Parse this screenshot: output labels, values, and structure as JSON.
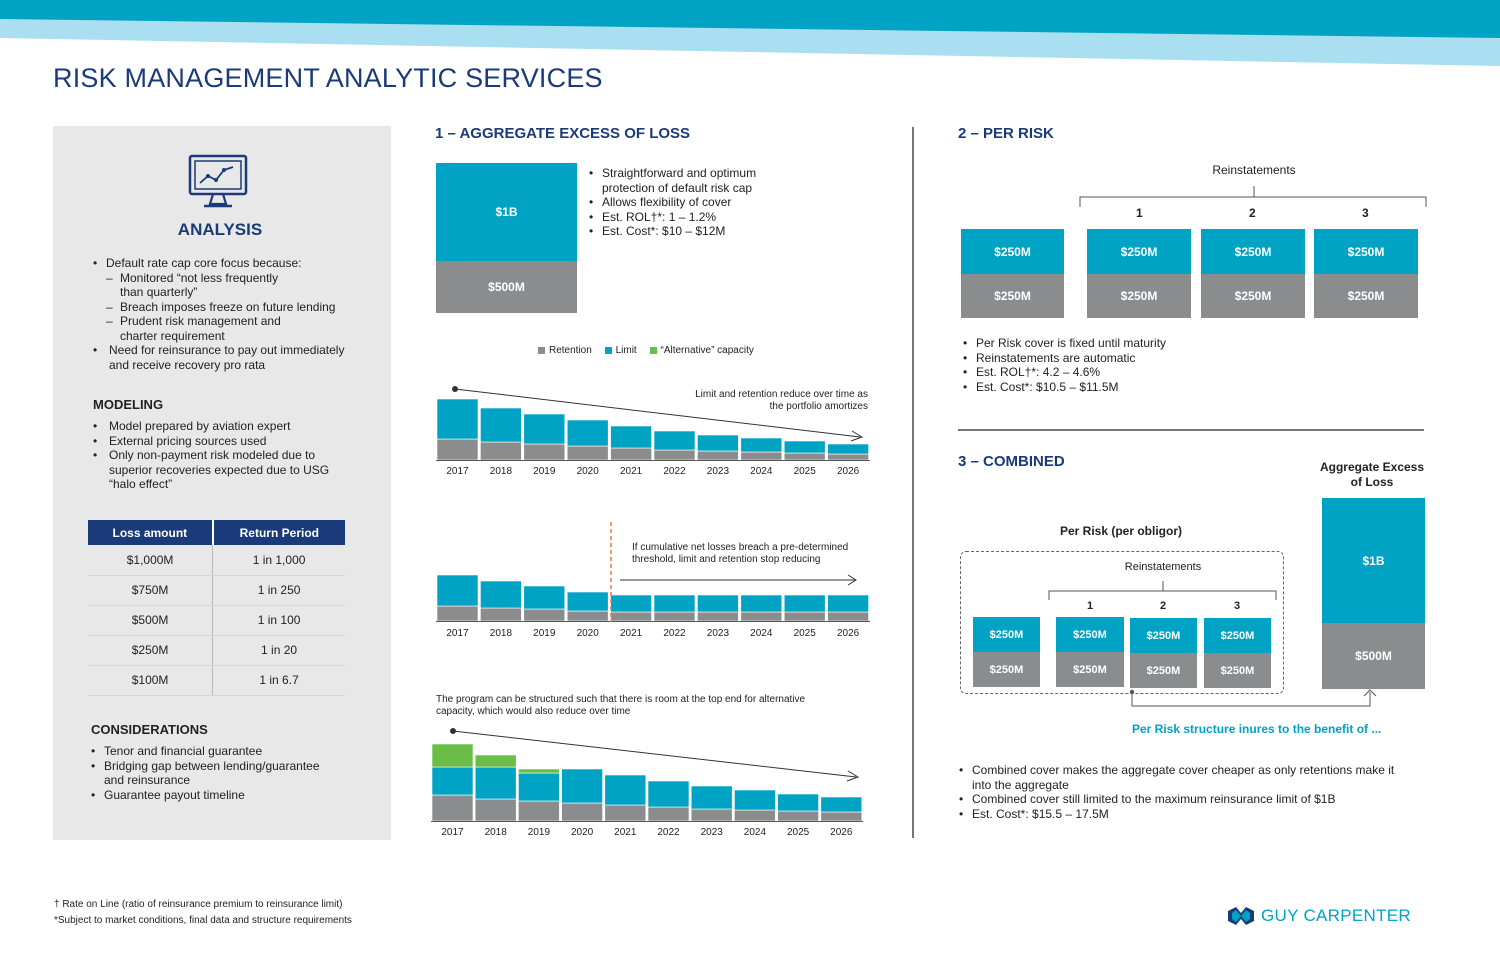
{
  "title": "RISK MANAGEMENT ANALYTIC SERVICES",
  "analysis": {
    "heading": "ANALYSIS",
    "b1": "Default rate cap core focus because:",
    "d1": "Monitored “not less frequently than quarterly”",
    "d2": "Breach imposes freeze on future lending",
    "d3": "Prudent risk management and charter requirement",
    "b2": "Need for reinsurance to pay out immediately and receive recovery pro rata"
  },
  "modeling": {
    "heading": "MODELING",
    "b1": "Model prepared by aviation expert",
    "b2": "External pricing sources used",
    "b3": "Only non-payment risk modeled due to superior recoveries expected due to USG “halo effect”"
  },
  "table": {
    "h1": "Loss amount",
    "h2": "Return Period",
    "rows": [
      [
        "$1,000M",
        "1 in 1,000"
      ],
      [
        "$750M",
        "1 in 250"
      ],
      [
        "$500M",
        "1 in 100"
      ],
      [
        "$250M",
        "1 in 20"
      ],
      [
        "$100M",
        "1 in 6.7"
      ]
    ]
  },
  "considerations": {
    "heading": "CONSIDERATIONS",
    "b1": "Tenor and financial guarantee",
    "b2": "Bridging gap between lending/guarantee and reinsurance",
    "b3": "Guarantee payout timeline"
  },
  "agg": {
    "heading": "1 – AGGREGATE EXCESS OF LOSS",
    "limit": "$1B",
    "retention": "$500M",
    "b1": "Straightforward and optimum protection of default risk cap",
    "b2": "Allows flexibility of cover",
    "b3": "Est. ROL†*: 1 – 1.2%",
    "b4": "Est. Cost*: $10 – $12M",
    "legend": [
      "Retention",
      "Limit",
      "“Alternative” capacity"
    ],
    "note1": "Limit and retention reduce over time as the portfolio amortizes",
    "note2": "If cumulative net losses breach  a pre-determined threshold, limit and retention stop reducing",
    "note3": "The program can be structured such that there is room at the top end for alternative capacity, which would also reduce over time"
  },
  "chart_data": [
    {
      "type": "bar",
      "categories": [
        "2017",
        "2018",
        "2019",
        "2020",
        "2021",
        "2022",
        "2023",
        "2024",
        "2025",
        "2026"
      ],
      "series": [
        {
          "name": "Retention",
          "values": [
            21,
            18,
            16,
            14,
            12,
            10,
            9,
            8,
            7,
            6
          ]
        },
        {
          "name": "Limit",
          "values": [
            40,
            34,
            30,
            26,
            22,
            19,
            16,
            14,
            12,
            10
          ]
        }
      ]
    },
    {
      "type": "bar",
      "categories": [
        "2017",
        "2018",
        "2019",
        "2020",
        "2021",
        "2022",
        "2023",
        "2024",
        "2025",
        "2026"
      ],
      "series": [
        {
          "name": "Retention",
          "values": [
            15,
            13,
            12,
            10,
            9,
            9,
            9,
            9,
            9,
            9
          ]
        },
        {
          "name": "Limit",
          "values": [
            31,
            27,
            23,
            19,
            17,
            17,
            17,
            17,
            17,
            17
          ]
        }
      ]
    },
    {
      "type": "bar",
      "categories": [
        "2017",
        "2018",
        "2019",
        "2020",
        "2021",
        "2022",
        "2023",
        "2024",
        "2025",
        "2026"
      ],
      "series": [
        {
          "name": "Retention",
          "values": [
            26,
            22,
            20,
            18,
            16,
            14,
            12,
            11,
            10,
            9
          ]
        },
        {
          "name": "Limit",
          "values": [
            28,
            32,
            28,
            34,
            30,
            26,
            23,
            20,
            17,
            15
          ]
        },
        {
          "name": "“Alternative” capacity",
          "values": [
            23,
            12,
            4,
            0,
            0,
            0,
            0,
            0,
            0,
            0
          ]
        }
      ]
    }
  ],
  "years": [
    "2017",
    "2018",
    "2019",
    "2020",
    "2021",
    "2022",
    "2023",
    "2024",
    "2025",
    "2026"
  ],
  "perrisk": {
    "heading": "2 – PER RISK",
    "reinstatements": "Reinstatements",
    "n1": "1",
    "n2": "2",
    "n3": "3",
    "top": "$250M",
    "bottom": "$250M",
    "b1": "Per Risk cover is fixed until maturity",
    "b2": "Reinstatements are automatic",
    "b3": "Est. ROL†*: 4.2 – 4.6%",
    "b4": "Est. Cost*: $10.5 – $11.5M"
  },
  "combined": {
    "heading": "3 – COMBINED",
    "agg_title": "Aggregate Excess of Loss",
    "agg_limit": "$1B",
    "agg_retention": "$500M",
    "perrisk_title": "Per Risk (per obligor)",
    "reinstatements": "Reinstatements",
    "n1": "1",
    "n2": "2",
    "n3": "3",
    "val": "$250M",
    "benefit": "Per Risk structure inures to the benefit of ...",
    "b1": "Combined cover makes the aggregate cover cheaper as only retentions make it into the aggregate",
    "b2": "Combined cover still limited to the maximum reinsurance limit of $1B",
    "b3": "Est. Cost*: $15.5 – 17.5M"
  },
  "footnotes": {
    "f1": "† Rate on Line (ratio of reinsurance premium  to reinsurance limit)",
    "f2": "*Subject to market conditions, final data and structure requirements"
  },
  "brand": "GUY CARPENTER",
  "colors": {
    "navy": "#1b3a7a",
    "teal": "#00a3c4",
    "gray": "#8a8c8e",
    "green": "#6abd45",
    "orange": "#f0782d"
  }
}
